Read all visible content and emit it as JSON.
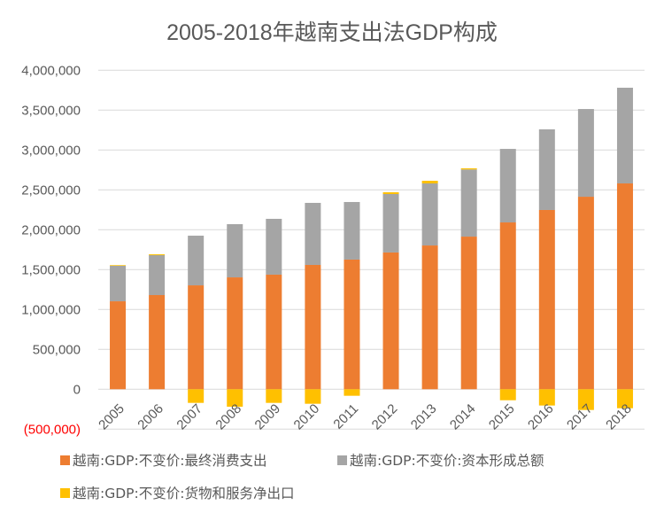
{
  "chart_data": {
    "type": "bar",
    "stacked": true,
    "title": "2005-2018年越南支出法GDP构成",
    "xlabel": "",
    "ylabel": "",
    "categories": [
      "2005",
      "2006",
      "2007",
      "2008",
      "2009",
      "2010",
      "2011",
      "2012",
      "2013",
      "2014",
      "2015",
      "2016",
      "2017",
      "2018"
    ],
    "ylim": [
      -500000,
      4000000
    ],
    "yticks": [
      {
        "value": 4000000,
        "label": "4,000,000"
      },
      {
        "value": 3500000,
        "label": "3,500,000"
      },
      {
        "value": 3000000,
        "label": "3,000,000"
      },
      {
        "value": 2500000,
        "label": "2,500,000"
      },
      {
        "value": 2000000,
        "label": "2,000,000"
      },
      {
        "value": 1500000,
        "label": "1,500,000"
      },
      {
        "value": 1000000,
        "label": "1,000,000"
      },
      {
        "value": 500000,
        "label": "500,000"
      },
      {
        "value": 0,
        "label": "0"
      },
      {
        "value": -500000,
        "label": "(500,000)"
      }
    ],
    "grid": true,
    "legend_position": "bottom",
    "series": [
      {
        "name": "越南:GDP:不变价:最终消费支出",
        "color": "#ED7D31",
        "values": [
          1103000,
          1181000,
          1303000,
          1403000,
          1437000,
          1559000,
          1626000,
          1715000,
          1803000,
          1914000,
          2092000,
          2248000,
          2414000,
          2581000
        ]
      },
      {
        "name": "越南:GDP:不变价:资本形成总额",
        "color": "#A5A5A5",
        "values": [
          445000,
          500000,
          623000,
          667000,
          700000,
          778000,
          722000,
          733000,
          778000,
          842000,
          922000,
          1011000,
          1100000,
          1200000
        ]
      },
      {
        "name": "越南:GDP:不变价:货物和服务净出口",
        "color": "#FFC000",
        "values": [
          8000,
          11000,
          -171000,
          -219000,
          -171000,
          -182000,
          -82000,
          22000,
          33000,
          14000,
          -138000,
          -204000,
          -260000,
          -238000
        ]
      }
    ]
  }
}
